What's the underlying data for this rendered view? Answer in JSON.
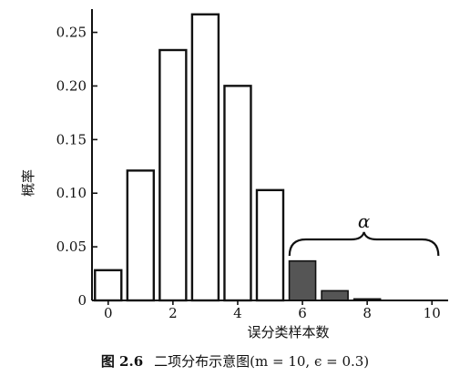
{
  "chart_data": {
    "type": "bar",
    "x": [
      0,
      1,
      2,
      3,
      4,
      5,
      6,
      7,
      8,
      9,
      10
    ],
    "values": [
      0.0282,
      0.1211,
      0.2335,
      0.2668,
      0.2001,
      0.1029,
      0.0368,
      0.009,
      0.0014,
      0.0001,
      0.0
    ],
    "highlight_from_x": 6,
    "xlabel": "误分类样本数",
    "ylabel": "概率",
    "xlim": [
      -0.5,
      10.5
    ],
    "ylim": [
      0,
      0.27
    ],
    "x_ticks": [
      {
        "value": 0,
        "label": "0"
      },
      {
        "value": 2,
        "label": "2"
      },
      {
        "value": 4,
        "label": "4"
      },
      {
        "value": 6,
        "label": "6"
      },
      {
        "value": 8,
        "label": "8"
      },
      {
        "value": 10,
        "label": "10"
      }
    ],
    "y_ticks": [
      {
        "value": 0,
        "label": "0"
      },
      {
        "value": 0.05,
        "label": "0.05"
      },
      {
        "value": 0.1,
        "label": "0.10"
      },
      {
        "value": 0.15,
        "label": "0.15"
      },
      {
        "value": 0.2,
        "label": "0.20"
      },
      {
        "value": 0.25,
        "label": "0.25"
      }
    ],
    "annotation": {
      "text": "α",
      "from_x": 5.6,
      "to_x": 10.2
    },
    "grid": false,
    "colors": {
      "bar_fill": "#ffffff",
      "highlight_fill": "#555555",
      "stroke": "#111111"
    }
  },
  "caption": {
    "label": "图 2.6",
    "text": "二项分布示意图(m = 10, ϵ = 0.3)"
  }
}
